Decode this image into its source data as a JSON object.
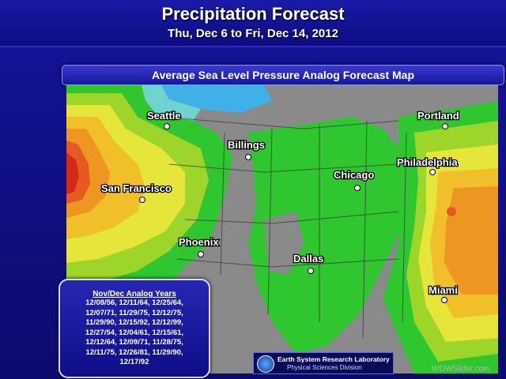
{
  "header": {
    "title": "Precipitation Forecast",
    "subtitle": "Thu, Dec 6 to Fri, Dec 14, 2012"
  },
  "map": {
    "title": "Average Sea Level Pressure Analog Forecast Map",
    "cities": [
      {
        "name": "Seattle"
      },
      {
        "name": "Billings"
      },
      {
        "name": "San Francisco"
      },
      {
        "name": "Chicago"
      },
      {
        "name": "Portland"
      },
      {
        "name": "Philadelphia"
      },
      {
        "name": "Phoenix"
      },
      {
        "name": "Dallas"
      },
      {
        "name": "Miami"
      }
    ],
    "colors": {
      "land": "#8a8a8a",
      "blue": "#3fb0e8",
      "cyan": "#6fd4d0",
      "green": "#2fc62f",
      "light_green": "#9ed52a",
      "yellow": "#e6e63a",
      "gold": "#f0bf2a",
      "orange": "#ee9522",
      "red_orange": "#e55a1f",
      "red": "#d42a14"
    }
  },
  "analog": {
    "title": "Nov/Dec Analog Years",
    "lines": [
      "12/08/56, 12/11/64, 12/25/64,",
      "12/07/71, 11/29/75, 12/12/75,",
      "11/29/90, 12/15/92, 12/12/99,",
      "12/27/54, 12/04/61, 12/15/61,",
      "12/12/64, 12/09/71, 11/28/75,",
      "12/11/75, 12/26/81, 11/29/90,",
      "12/17/92"
    ]
  },
  "logo": {
    "line1": "Earth System Research Laboratory",
    "line2": "Physical Sciences Division",
    "icon": "noaa-logo-icon"
  },
  "watermark": "WOWSlider.com"
}
